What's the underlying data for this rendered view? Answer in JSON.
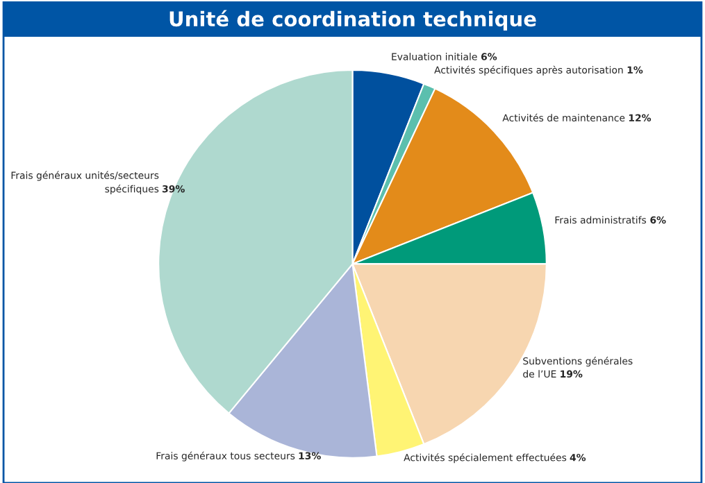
{
  "chart_data": {
    "type": "pie",
    "title": "Unité de coordination technique",
    "categories": [
      "Evaluation initiale",
      "Activités spécifiques après autorisation",
      "Activités de maintenance",
      "Frais administratifs",
      "Subventions générales\nde l’UE",
      "Activités spécialement effectuées",
      "Frais généraux tous secteurs",
      "Frais généraux unités/secteurs\nspécifiques"
    ],
    "values": [
      6,
      1,
      12,
      6,
      19,
      4,
      13,
      39
    ],
    "colors": [
      "#00509e",
      "#5bbfae",
      "#e38b1a",
      "#009a7a",
      "#f7d6b0",
      "#fff474",
      "#aab5d8",
      "#afd9cf"
    ],
    "value_labels": [
      "6%",
      "1%",
      "12%",
      "6%",
      "19%",
      "4%",
      "13%",
      "39%"
    ]
  }
}
